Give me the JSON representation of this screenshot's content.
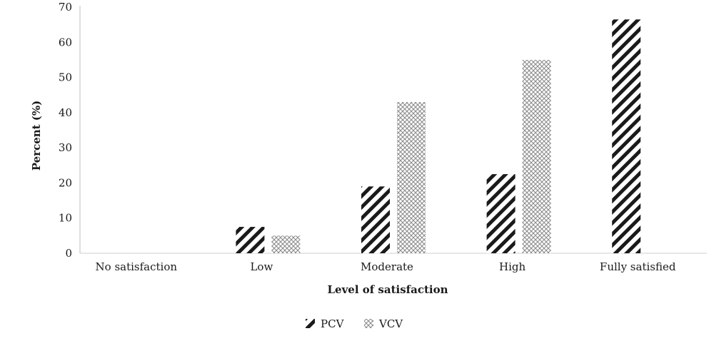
{
  "chart_data": {
    "type": "bar",
    "categories": [
      "No satisfaction",
      "Low",
      "Moderate",
      "High",
      "Fully satisfied"
    ],
    "series": [
      {
        "name": "PCV",
        "values": [
          0,
          7.5,
          19,
          22.5,
          66.5
        ],
        "pattern": "diagonal-stripes",
        "color": "#1a1a1a"
      },
      {
        "name": "VCV",
        "values": [
          0,
          5,
          43,
          55,
          0
        ],
        "pattern": "crosshatch",
        "color": "#9a9a9a"
      }
    ],
    "xlabel": "Level of satisfaction",
    "ylabel": "Percent (%)",
    "ylim": [
      0,
      70
    ],
    "yticks": [
      0,
      10,
      20,
      30,
      40,
      50,
      60,
      70
    ],
    "grid": false,
    "legend": "bottom-center"
  }
}
